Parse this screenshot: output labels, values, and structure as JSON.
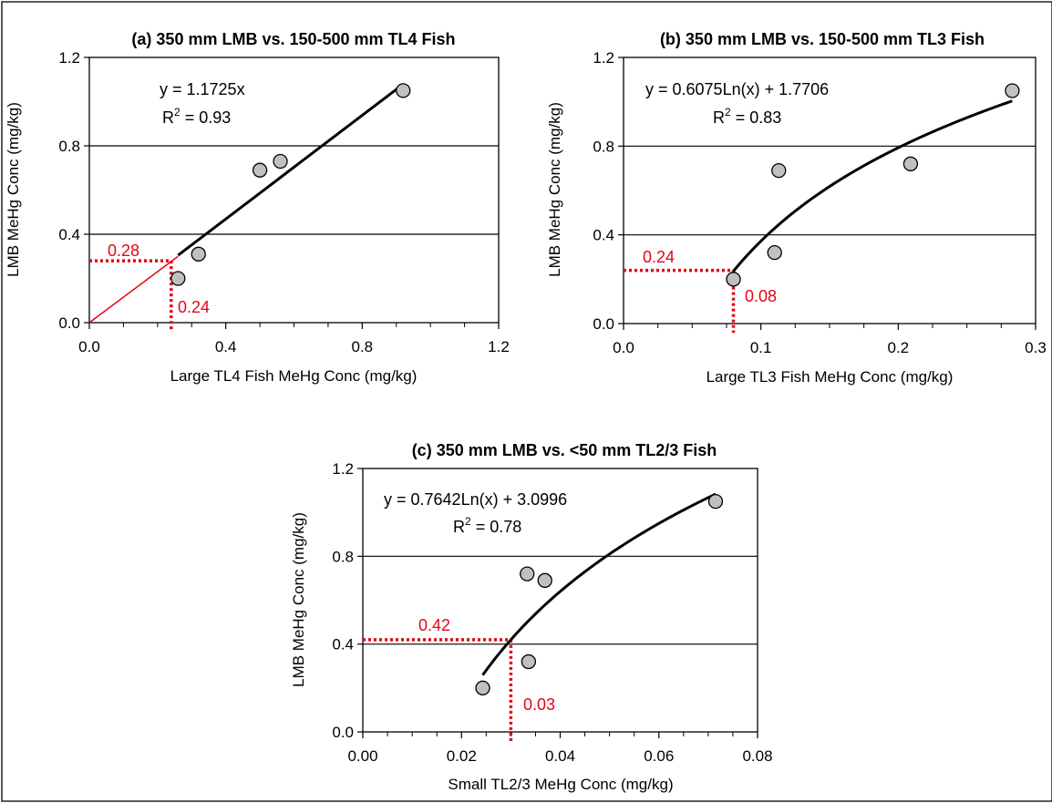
{
  "colors": {
    "marker_fill": "#c0c0c0",
    "marker_stroke": "#000000",
    "annotation": "#e30613",
    "line": "#000000"
  },
  "chart_data": [
    {
      "panel": "a",
      "type": "scatter",
      "title": "(a) 350 mm LMB vs. 150-500 mm TL4 Fish",
      "xlabel": "Large TL4 Fish MeHg Conc  (mg/kg)",
      "ylabel": "LMB MeHg Conc (mg/kg)",
      "xlim": [
        0,
        1.2
      ],
      "ylim": [
        0,
        1.2
      ],
      "xticks": [
        0,
        0.4,
        0.8,
        1.2
      ],
      "xtick_labels": [
        "0.0",
        "0.4",
        "0.8",
        "1.2"
      ],
      "yticks": [
        0,
        0.4,
        0.8,
        1.2
      ],
      "ytick_labels": [
        "0.0",
        "0.4",
        "0.8",
        "1.2"
      ],
      "horizontal_gridlines": [
        0.4,
        0.8
      ],
      "points": [
        {
          "x": 0.26,
          "y": 0.2
        },
        {
          "x": 0.32,
          "y": 0.31
        },
        {
          "x": 0.5,
          "y": 0.69
        },
        {
          "x": 0.56,
          "y": 0.73
        },
        {
          "x": 0.92,
          "y": 1.05
        }
      ],
      "fit": {
        "model": "linear",
        "slope": 1.1725,
        "x_range": [
          0.26,
          0.92
        ]
      },
      "equation": "y = 1.1725x",
      "r2_label": "R",
      "r2_sup": "2",
      "r2_value": " = 0.93",
      "extrapolation": {
        "from": [
          0,
          0
        ],
        "to": [
          0.26,
          0.3
        ]
      },
      "reference": {
        "x": 0.24,
        "y": 0.28
      },
      "ref_labels": {
        "y": "0.28",
        "x": "0.24"
      }
    },
    {
      "panel": "b",
      "type": "scatter",
      "title": "(b) 350 mm LMB vs. 150-500 mm TL3 Fish",
      "xlabel": "Large TL3 Fish MeHg Conc  (mg/kg)",
      "ylabel": "LMB MeHg Conc (mg/kg)",
      "xlim": [
        0,
        0.3
      ],
      "ylim": [
        0,
        1.2
      ],
      "xticks": [
        0,
        0.1,
        0.2,
        0.3
      ],
      "xtick_labels": [
        "0.0",
        "0.1",
        "0.2",
        "0.3"
      ],
      "yticks": [
        0,
        0.4,
        0.8,
        1.2
      ],
      "ytick_labels": [
        "0.0",
        "0.4",
        "0.8",
        "1.2"
      ],
      "horizontal_gridlines": [
        0.4,
        0.8
      ],
      "points": [
        {
          "x": 0.08,
          "y": 0.2
        },
        {
          "x": 0.11,
          "y": 0.32
        },
        {
          "x": 0.113,
          "y": 0.69
        },
        {
          "x": 0.209,
          "y": 0.72
        },
        {
          "x": 0.283,
          "y": 1.05
        }
      ],
      "fit": {
        "model": "log",
        "a": 0.6075,
        "b": 1.7706,
        "x_range": [
          0.08,
          0.283
        ]
      },
      "equation": "y = 0.6075Ln(x) + 1.7706",
      "r2_label": "R",
      "r2_sup": "2",
      "r2_value": " = 0.83",
      "reference": {
        "x": 0.08,
        "y": 0.24
      },
      "ref_labels": {
        "y": "0.24",
        "x": "0.08"
      }
    },
    {
      "panel": "c",
      "type": "scatter",
      "title": "(c) 350 mm LMB vs. <50 mm TL2/3 Fish",
      "xlabel": "Small TL2/3 MeHg Conc  (mg/kg)",
      "ylabel": "LMB MeHg Conc (mg/kg)",
      "xlim": [
        0,
        0.08
      ],
      "ylim": [
        0,
        1.2
      ],
      "xticks": [
        0,
        0.02,
        0.04,
        0.06,
        0.08
      ],
      "xtick_labels": [
        "0.00",
        "0.02",
        "0.04",
        "0.06",
        "0.08"
      ],
      "yticks": [
        0,
        0.4,
        0.8,
        1.2
      ],
      "ytick_labels": [
        "0.0",
        "0.4",
        "0.8",
        "1.2"
      ],
      "horizontal_gridlines": [
        0.4,
        0.8
      ],
      "points": [
        {
          "x": 0.0243,
          "y": 0.2
        },
        {
          "x": 0.0333,
          "y": 0.72
        },
        {
          "x": 0.0369,
          "y": 0.69
        },
        {
          "x": 0.0336,
          "y": 0.32
        },
        {
          "x": 0.0715,
          "y": 1.05
        }
      ],
      "fit": {
        "model": "log",
        "a": 0.7642,
        "b": 3.0996,
        "x_range": [
          0.0243,
          0.0715
        ]
      },
      "equation": "y = 0.7642Ln(x) + 3.0996",
      "r2_label": "R",
      "r2_sup": "2",
      "r2_value": " = 0.78",
      "reference": {
        "x": 0.03,
        "y": 0.42
      },
      "ref_labels": {
        "y": "0.42",
        "x": "0.03"
      }
    }
  ]
}
